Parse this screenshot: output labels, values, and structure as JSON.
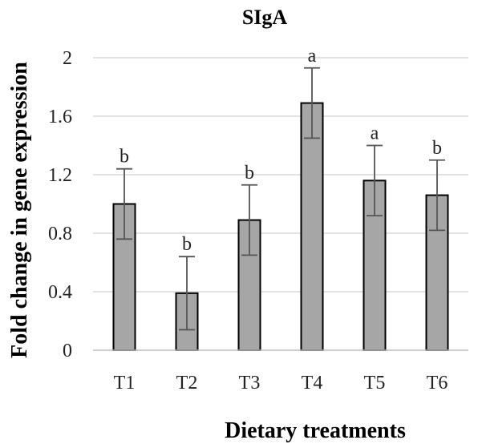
{
  "chart_data": {
    "type": "bar",
    "title": "SIgA",
    "xlabel": "Dietary treatments",
    "ylabel": "Fold change in gene expression",
    "categories": [
      "T1",
      "T2",
      "T3",
      "T4",
      "T5",
      "T6"
    ],
    "values": [
      1.0,
      0.39,
      0.89,
      1.69,
      1.16,
      1.06
    ],
    "error": [
      0.24,
      0.25,
      0.24,
      0.24,
      0.24,
      0.24
    ],
    "significance": [
      "b",
      "b",
      "b",
      "a",
      "a",
      "b"
    ],
    "ylim": [
      0,
      2
    ],
    "yticks": [
      "0",
      "0.4",
      "0.8",
      "1.2",
      "1.6",
      "2"
    ],
    "grid": true,
    "legend": "none",
    "bar_color": "#a6a6a6",
    "bar_edge_color": "#000000"
  }
}
